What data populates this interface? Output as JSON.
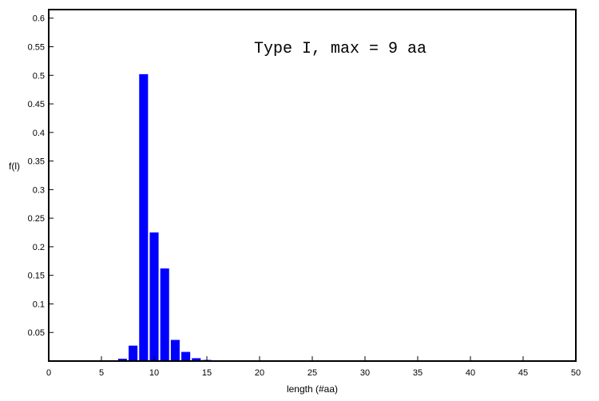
{
  "chart_data": {
    "type": "bar",
    "title": "",
    "annotation": "Type I, max = 9 aa",
    "xlabel": "length (#aa)",
    "ylabel": "f(l)",
    "xlim": [
      0,
      50
    ],
    "ylim": [
      0,
      0.615
    ],
    "xticks": [
      0,
      5,
      10,
      15,
      20,
      25,
      30,
      35,
      40,
      45,
      50
    ],
    "yticks": [
      0.05,
      0.1,
      0.15,
      0.2,
      0.25,
      0.3,
      0.35,
      0.4,
      0.45,
      0.5,
      0.55,
      0.6
    ],
    "bar_color": "#0000ff",
    "bars": [
      {
        "x": 7,
        "value": 0.004
      },
      {
        "x": 8,
        "value": 0.027
      },
      {
        "x": 9,
        "value": 0.502
      },
      {
        "x": 10,
        "value": 0.225
      },
      {
        "x": 11,
        "value": 0.162
      },
      {
        "x": 12,
        "value": 0.037
      },
      {
        "x": 13,
        "value": 0.016
      },
      {
        "x": 14,
        "value": 0.005
      },
      {
        "x": 15,
        "value": 0.002
      },
      {
        "x": 16,
        "value": 0.001
      },
      {
        "x": 17,
        "value": 0.001
      },
      {
        "x": 18,
        "value": 0.0005
      },
      {
        "x": 19,
        "value": 0.0005
      },
      {
        "x": 20,
        "value": 0.0003
      },
      {
        "x": 21,
        "value": 0.0002
      }
    ]
  }
}
